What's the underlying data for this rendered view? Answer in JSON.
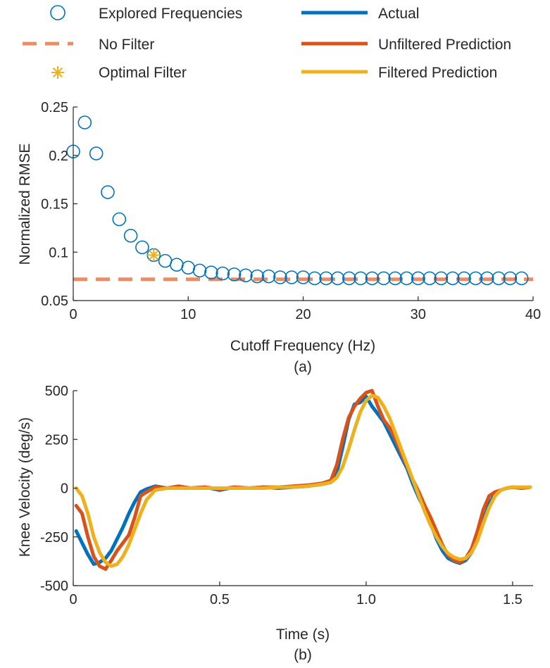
{
  "colors": {
    "explored": "#0072BD",
    "no_filter": "#EB8C66",
    "optimal": "#EDB120",
    "actual": "#0072BD",
    "unfiltered": "#D95319",
    "filtered": "#EDB120",
    "axis": "#262626"
  },
  "legend": {
    "explored": "Explored Frequencies",
    "no_filter": "No Filter",
    "optimal": "Optimal Filter",
    "actual": "Actual",
    "unfiltered": "Unfiltered Prediction",
    "filtered": "Filtered Prediction"
  },
  "chart_data": [
    {
      "type": "scatter",
      "panel_label": "(a)",
      "xlabel": "Cutoff Frequency (Hz)",
      "ylabel": "Normalized RMSE",
      "xlim": [
        0,
        40
      ],
      "ylim": [
        0.05,
        0.25
      ],
      "xticks": [
        0,
        10,
        20,
        30,
        40
      ],
      "xtick_labels": [
        "0",
        "10",
        "20",
        "30",
        "40"
      ],
      "yticks": [
        0.05,
        0.1,
        0.15,
        0.2,
        0.25
      ],
      "ytick_labels": [
        "0.05",
        "0.1",
        "0.15",
        "0.2",
        "0.25"
      ],
      "grid": false,
      "series": [
        {
          "name": "Explored Frequencies",
          "x": [
            0,
            1,
            2,
            3,
            4,
            5,
            6,
            7,
            8,
            9,
            10,
            11,
            12,
            13,
            14,
            15,
            16,
            17,
            18,
            19,
            20,
            21,
            22,
            23,
            24,
            25,
            26,
            27,
            28,
            29,
            30,
            31,
            32,
            33,
            34,
            35,
            36,
            37,
            38,
            39
          ],
          "y": [
            0.204,
            0.234,
            0.202,
            0.162,
            0.134,
            0.117,
            0.105,
            0.097,
            0.091,
            0.087,
            0.084,
            0.081,
            0.079,
            0.078,
            0.077,
            0.076,
            0.075,
            0.075,
            0.074,
            0.074,
            0.074,
            0.073,
            0.073,
            0.073,
            0.073,
            0.073,
            0.073,
            0.073,
            0.073,
            0.073,
            0.073,
            0.073,
            0.073,
            0.073,
            0.073,
            0.073,
            0.073,
            0.073,
            0.073,
            0.073
          ]
        },
        {
          "name": "No Filter",
          "x": [
            0,
            40
          ],
          "y": [
            0.072,
            0.072
          ]
        },
        {
          "name": "Optimal Filter",
          "x": [
            7
          ],
          "y": [
            0.097
          ]
        }
      ]
    },
    {
      "type": "line",
      "panel_label": "(b)",
      "xlabel": "Time (s)",
      "ylabel": "Knee Velocity (deg/s)",
      "xlim": [
        0,
        1.57
      ],
      "ylim": [
        -500,
        500
      ],
      "xticks": [
        0,
        0.5,
        1.0,
        1.5
      ],
      "xtick_labels": [
        "0",
        "0.5",
        "1.0",
        "1.5"
      ],
      "yticks": [
        -500,
        -250,
        0,
        250,
        500
      ],
      "ytick_labels": [
        "-500",
        "-250",
        "0",
        "250",
        "500"
      ],
      "grid": false,
      "series": [
        {
          "name": "Actual",
          "x": [
            0.01,
            0.03,
            0.05,
            0.07,
            0.09,
            0.11,
            0.13,
            0.15,
            0.17,
            0.19,
            0.21,
            0.23,
            0.25,
            0.28,
            0.32,
            0.36,
            0.4,
            0.45,
            0.5,
            0.55,
            0.6,
            0.65,
            0.7,
            0.75,
            0.8,
            0.85,
            0.88,
            0.9,
            0.92,
            0.94,
            0.96,
            0.98,
            1.0,
            1.02,
            1.04,
            1.06,
            1.08,
            1.1,
            1.12,
            1.14,
            1.16,
            1.18,
            1.2,
            1.22,
            1.24,
            1.26,
            1.28,
            1.3,
            1.32,
            1.34,
            1.36,
            1.38,
            1.4,
            1.42,
            1.44,
            1.46,
            1.48,
            1.5,
            1.53,
            1.56
          ],
          "y": [
            -220,
            -280,
            -340,
            -390,
            -380,
            -360,
            -320,
            -260,
            -200,
            -130,
            -70,
            -20,
            -5,
            10,
            0,
            5,
            0,
            5,
            -10,
            5,
            0,
            5,
            0,
            5,
            10,
            20,
            30,
            80,
            210,
            350,
            430,
            440,
            470,
            420,
            380,
            340,
            280,
            220,
            160,
            100,
            20,
            -50,
            -110,
            -180,
            -260,
            -320,
            -360,
            -375,
            -385,
            -370,
            -330,
            -260,
            -170,
            -80,
            -30,
            -10,
            0,
            5,
            0,
            5
          ]
        },
        {
          "name": "Unfiltered Prediction",
          "x": [
            0.01,
            0.03,
            0.05,
            0.07,
            0.09,
            0.11,
            0.13,
            0.15,
            0.17,
            0.19,
            0.21,
            0.23,
            0.25,
            0.28,
            0.32,
            0.36,
            0.4,
            0.45,
            0.5,
            0.55,
            0.6,
            0.65,
            0.7,
            0.75,
            0.8,
            0.85,
            0.88,
            0.9,
            0.92,
            0.94,
            0.96,
            0.98,
            1.0,
            1.02,
            1.04,
            1.06,
            1.08,
            1.1,
            1.12,
            1.14,
            1.16,
            1.18,
            1.2,
            1.22,
            1.24,
            1.26,
            1.28,
            1.3,
            1.32,
            1.34,
            1.36,
            1.38,
            1.4,
            1.42,
            1.44,
            1.46,
            1.48,
            1.5,
            1.53,
            1.56
          ],
          "y": [
            -90,
            -130,
            -250,
            -350,
            -400,
            -415,
            -370,
            -320,
            -280,
            -240,
            -150,
            -40,
            -20,
            5,
            0,
            10,
            0,
            5,
            -5,
            5,
            0,
            5,
            5,
            10,
            15,
            25,
            40,
            120,
            250,
            360,
            420,
            460,
            490,
            500,
            420,
            350,
            310,
            250,
            180,
            110,
            40,
            -20,
            -90,
            -150,
            -220,
            -290,
            -345,
            -370,
            -380,
            -360,
            -310,
            -220,
            -110,
            -40,
            -20,
            -10,
            0,
            5,
            0,
            5
          ]
        },
        {
          "name": "Filtered Prediction",
          "x": [
            0.01,
            0.03,
            0.05,
            0.07,
            0.09,
            0.11,
            0.13,
            0.15,
            0.17,
            0.19,
            0.21,
            0.23,
            0.25,
            0.28,
            0.32,
            0.36,
            0.4,
            0.45,
            0.5,
            0.55,
            0.6,
            0.65,
            0.7,
            0.75,
            0.8,
            0.85,
            0.88,
            0.9,
            0.92,
            0.94,
            0.96,
            0.98,
            1.0,
            1.02,
            1.04,
            1.06,
            1.08,
            1.1,
            1.12,
            1.14,
            1.16,
            1.18,
            1.2,
            1.22,
            1.24,
            1.26,
            1.28,
            1.3,
            1.32,
            1.34,
            1.36,
            1.38,
            1.4,
            1.42,
            1.44,
            1.46,
            1.48,
            1.5,
            1.53,
            1.56
          ],
          "y": [
            0,
            -40,
            -130,
            -250,
            -330,
            -380,
            -400,
            -390,
            -350,
            -290,
            -210,
            -130,
            -60,
            -10,
            0,
            0,
            0,
            0,
            0,
            0,
            0,
            0,
            5,
            5,
            10,
            20,
            30,
            55,
            110,
            200,
            300,
            390,
            450,
            475,
            465,
            420,
            360,
            280,
            200,
            120,
            40,
            -40,
            -120,
            -190,
            -250,
            -300,
            -335,
            -355,
            -365,
            -360,
            -330,
            -270,
            -180,
            -100,
            -40,
            -10,
            0,
            5,
            5,
            5
          ]
        }
      ]
    }
  ]
}
